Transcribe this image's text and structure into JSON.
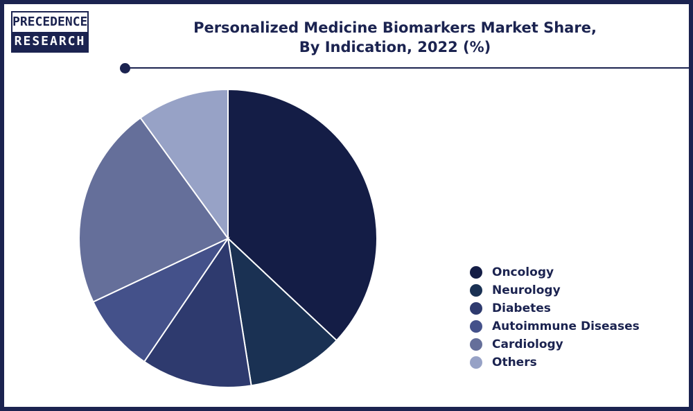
{
  "logo": {
    "line1": "PRECEDENCE",
    "line2": "RESEARCH"
  },
  "header": {
    "title_line1": "Personalized Medicine Biomarkers Market Share,",
    "title_line2": "By Indication, 2022 (%)"
  },
  "colors": {
    "frame": "#1b2350",
    "title": "#1b2350"
  },
  "chart_data": {
    "type": "pie",
    "title": "Personalized Medicine Biomarkers Market Share, By Indication, 2022 (%)",
    "categories": [
      "Oncology",
      "Neurology",
      "Diabetes",
      "Autoimmune Diseases",
      "Cardiology",
      "Others"
    ],
    "values": [
      37.0,
      10.5,
      12.0,
      8.5,
      22.0,
      10.0
    ],
    "colors": [
      "#141d46",
      "#1a3153",
      "#2e3a6e",
      "#44518a",
      "#656f9a",
      "#97a2c6"
    ],
    "legend_position": "right",
    "start_angle_deg": 0,
    "direction": "clockwise"
  }
}
